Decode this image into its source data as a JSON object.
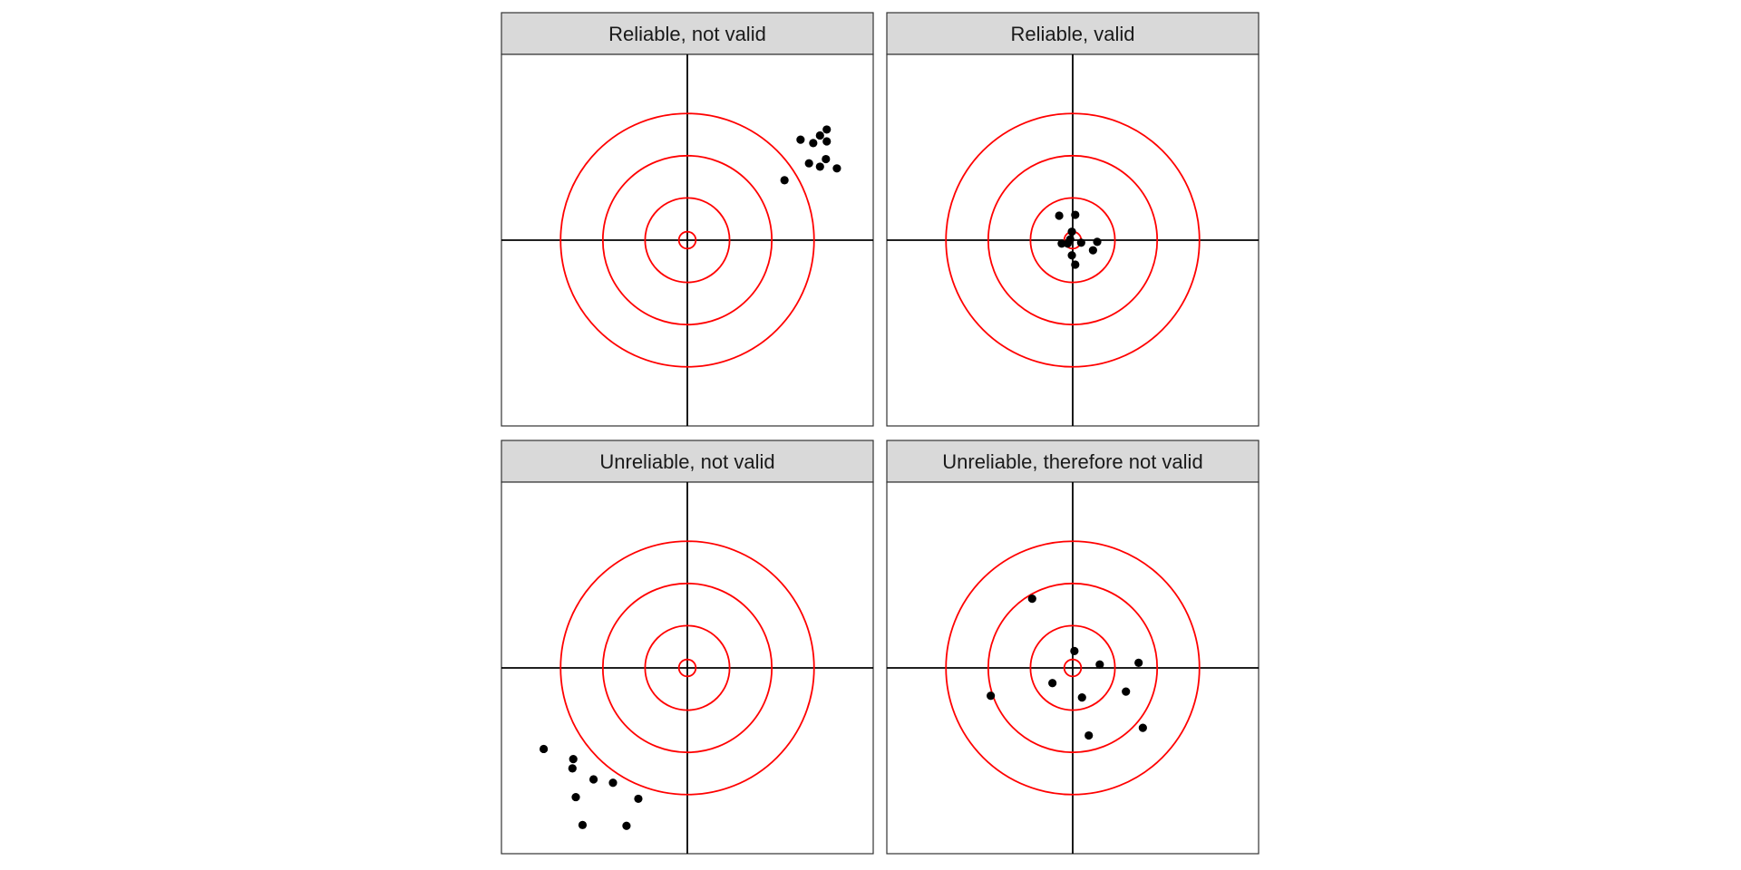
{
  "chart_data": {
    "type": "scatter",
    "layout": "2x2 facet grid",
    "xlim": [
      -2.2,
      2.2
    ],
    "ylim": [
      -2.2,
      2.2
    ],
    "axes_visible": false,
    "grid": false,
    "reference_lines": {
      "x": 0,
      "y": 0,
      "color": "#000000"
    },
    "target_circles": {
      "radii": [
        0.1,
        0.5,
        1.0,
        1.5
      ],
      "color": "#ff0000"
    },
    "point_color": "#000000",
    "panels": [
      {
        "title": "Reliable, not valid",
        "points": [
          {
            "x": 1.34,
            "y": 1.19
          },
          {
            "x": 1.49,
            "y": 1.15
          },
          {
            "x": 1.57,
            "y": 1.24
          },
          {
            "x": 1.65,
            "y": 1.31
          },
          {
            "x": 1.65,
            "y": 1.17
          },
          {
            "x": 1.44,
            "y": 0.91
          },
          {
            "x": 1.57,
            "y": 0.87
          },
          {
            "x": 1.64,
            "y": 0.96
          },
          {
            "x": 1.77,
            "y": 0.85
          },
          {
            "x": 1.15,
            "y": 0.71
          }
        ]
      },
      {
        "title": "Reliable, valid",
        "points": [
          {
            "x": -0.16,
            "y": 0.29
          },
          {
            "x": 0.03,
            "y": 0.3
          },
          {
            "x": -0.01,
            "y": 0.1
          },
          {
            "x": -0.03,
            "y": 0.01
          },
          {
            "x": -0.13,
            "y": -0.04
          },
          {
            "x": -0.06,
            "y": -0.04
          },
          {
            "x": 0.1,
            "y": -0.03
          },
          {
            "x": 0.29,
            "y": -0.02
          },
          {
            "x": 0.24,
            "y": -0.12
          },
          {
            "x": -0.01,
            "y": -0.18
          },
          {
            "x": 0.03,
            "y": -0.29
          }
        ]
      },
      {
        "title": "Unreliable, not valid",
        "points": [
          {
            "x": -1.7,
            "y": -0.96
          },
          {
            "x": -1.35,
            "y": -1.08
          },
          {
            "x": -1.36,
            "y": -1.19
          },
          {
            "x": -1.11,
            "y": -1.32
          },
          {
            "x": -0.88,
            "y": -1.36
          },
          {
            "x": -1.32,
            "y": -1.53
          },
          {
            "x": -0.58,
            "y": -1.55
          },
          {
            "x": -1.24,
            "y": -1.86
          },
          {
            "x": -0.72,
            "y": -1.87
          }
        ]
      },
      {
        "title": "Unreliable, therefore not valid",
        "points": [
          {
            "x": -0.48,
            "y": 0.82
          },
          {
            "x": 0.02,
            "y": 0.2
          },
          {
            "x": 0.32,
            "y": 0.04
          },
          {
            "x": 0.78,
            "y": 0.06
          },
          {
            "x": -0.24,
            "y": -0.18
          },
          {
            "x": 0.11,
            "y": -0.35
          },
          {
            "x": 0.63,
            "y": -0.28
          },
          {
            "x": -0.97,
            "y": -0.33
          },
          {
            "x": 0.19,
            "y": -0.8
          },
          {
            "x": 0.83,
            "y": -0.71
          }
        ]
      }
    ]
  }
}
